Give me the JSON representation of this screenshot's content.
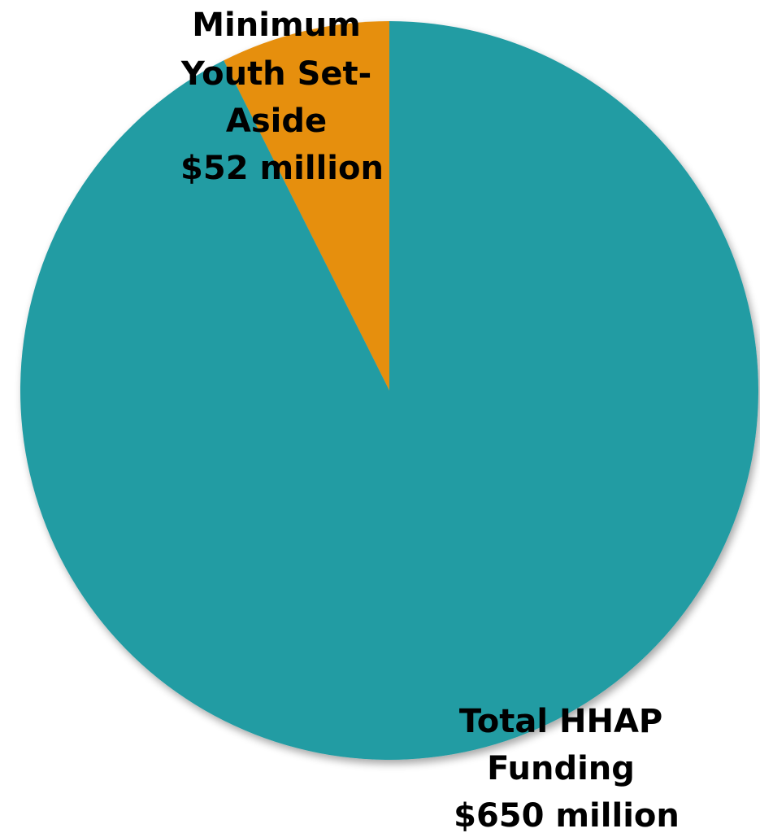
{
  "chart_data": {
    "type": "pie",
    "title": "",
    "start_angle_deg": 0,
    "direction": "counterclockwise",
    "slices": [
      {
        "label_lines": [
          "Total HHAP",
          "Funding",
          "$650 million"
        ],
        "value": 650,
        "unit": "million",
        "color": "#209ca3"
      },
      {
        "label_lines": [
          "Minimum",
          "Youth Set-",
          "Aside",
          "$52 million"
        ],
        "value": 52,
        "unit": "million",
        "color": "#e68f0c"
      }
    ],
    "legend": "none",
    "data_labels": "category and value"
  }
}
